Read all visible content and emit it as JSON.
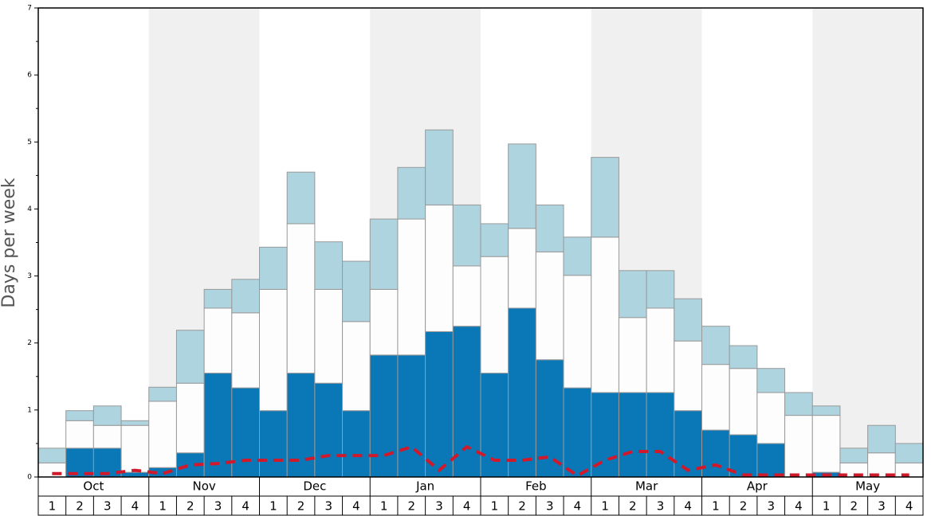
{
  "chart_data": {
    "type": "stacked-bar",
    "y_label": "Days per week",
    "months": [
      "Oct",
      "Nov",
      "Dec",
      "Jan",
      "Feb",
      "Mar",
      "Apr",
      "May"
    ],
    "categories": [
      "1",
      "2",
      "3",
      "4",
      "1",
      "2",
      "3",
      "4",
      "1",
      "2",
      "3",
      "4",
      "1",
      "2",
      "3",
      "4",
      "1",
      "2",
      "3",
      "4",
      "1",
      "2",
      "3",
      "4",
      "1",
      "2",
      "3",
      "4",
      "1",
      "2",
      "3",
      "4"
    ],
    "series": [
      {
        "color": "#0a77b7",
        "values": [
          0,
          0.43,
          0.43,
          0.07,
          0.14,
          0.36,
          1.55,
          1.33,
          0.99,
          1.55,
          1.4,
          0.99,
          1.82,
          1.82,
          2.17,
          2.25,
          1.55,
          2.52,
          1.75,
          1.33,
          1.26,
          1.26,
          1.26,
          0.99,
          0.7,
          0.63,
          0.5,
          0,
          0.07,
          0,
          0,
          0
        ]
      },
      {
        "color": "#fdfdfd",
        "values": [
          0.21,
          0.41,
          0.34,
          0.7,
          0.99,
          1.04,
          0.97,
          1.12,
          1.81,
          2.23,
          1.4,
          1.33,
          0.98,
          2.03,
          1.89,
          0.9,
          1.74,
          1.19,
          1.61,
          1.68,
          2.32,
          1.12,
          1.26,
          1.04,
          0.98,
          0.99,
          0.76,
          0.92,
          0.85,
          0.21,
          0.36,
          0.21
        ]
      },
      {
        "color": "#aed4e0",
        "values": [
          0.22,
          0.15,
          0.29,
          0.07,
          0.21,
          0.79,
          0.28,
          0.5,
          0.63,
          0.77,
          0.71,
          0.9,
          1.05,
          0.77,
          1.12,
          0.91,
          0.49,
          1.26,
          0.7,
          0.57,
          1.19,
          0.7,
          0.56,
          0.63,
          0.57,
          0.34,
          0.36,
          0.34,
          0.14,
          0.22,
          0.41,
          0.29
        ]
      }
    ],
    "line": {
      "color": "#d0192b",
      "dashed": true,
      "values": [
        0.05,
        0.05,
        0.05,
        0.1,
        0.05,
        0.18,
        0.2,
        0.25,
        0.25,
        0.25,
        0.32,
        0.32,
        0.32,
        0.45,
        0.1,
        0.45,
        0.25,
        0.25,
        0.3,
        0.02,
        0.25,
        0.38,
        0.38,
        0.1,
        0.18,
        0.03,
        0.03,
        0.03,
        0.03,
        0.03,
        0.03,
        0.03
      ]
    },
    "ylim": [
      0,
      7
    ],
    "yticks": [
      0,
      1,
      2,
      3,
      4,
      5,
      6,
      7
    ],
    "yminorticks": [
      0.5,
      1.5,
      2.5,
      3.5,
      4.5,
      5.5,
      6.5
    ],
    "band_color": "#f0f0f0"
  }
}
